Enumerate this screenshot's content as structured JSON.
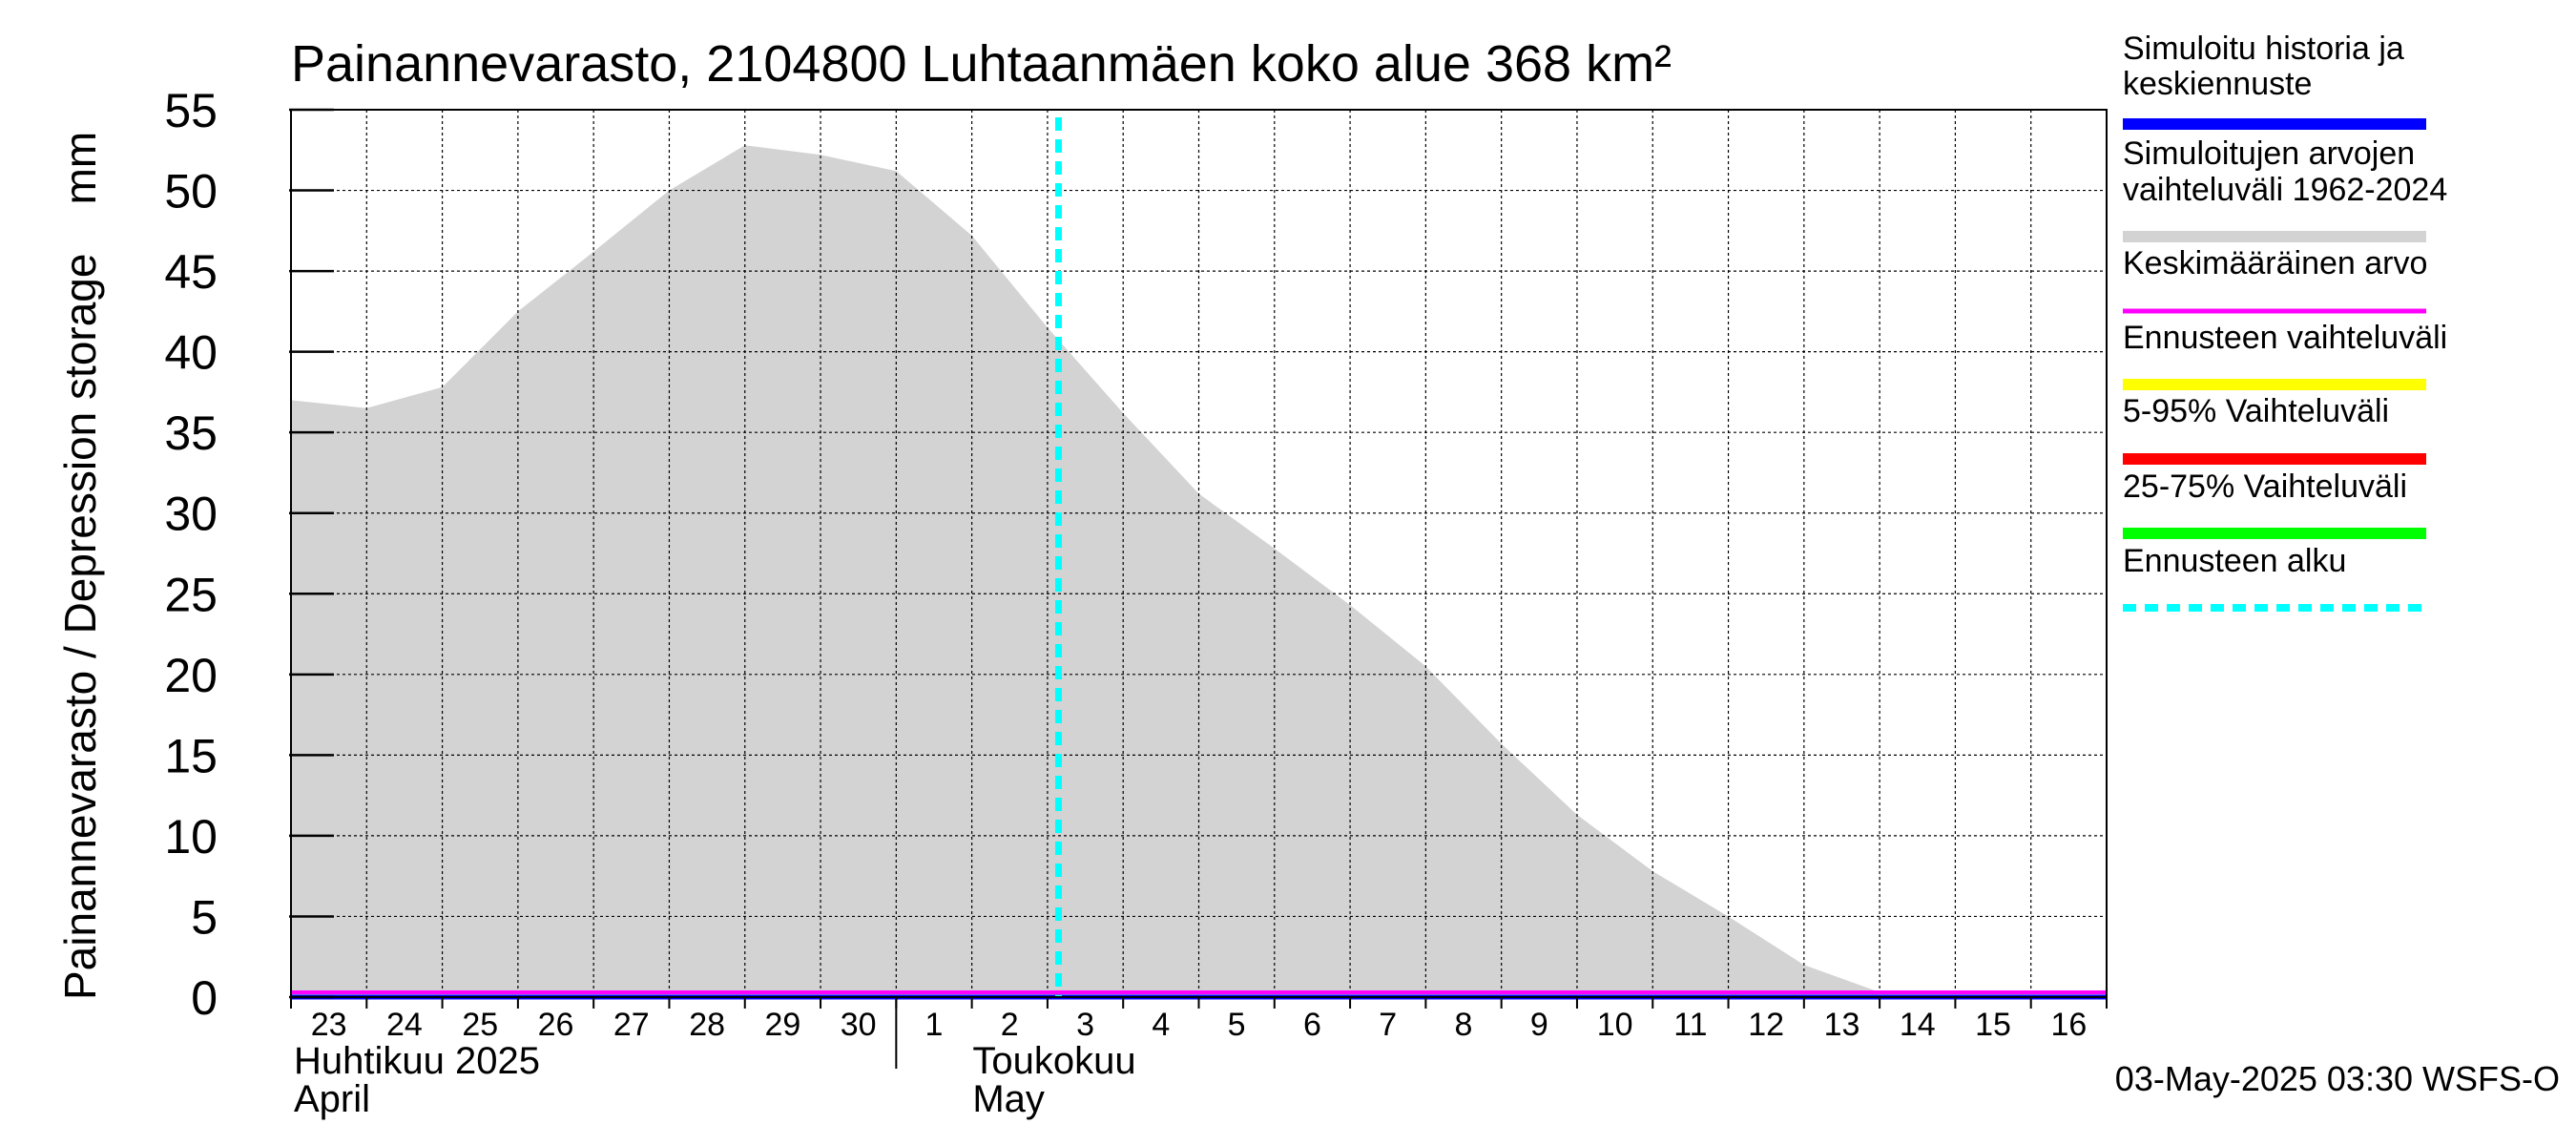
{
  "chart_data": {
    "type": "area",
    "title": "Painannevarasto, 2104800 Luhtaanmäen koko alue 368 km²",
    "ylabel": "Painannevarasto / Depression storage    mm",
    "ylim": [
      0,
      55
    ],
    "yticks": [
      0,
      5,
      10,
      15,
      20,
      25,
      30,
      35,
      40,
      45,
      50,
      55
    ],
    "x_range": [
      "2025-04-23",
      "2025-05-17"
    ],
    "x_tick_labels": [
      "23",
      "24",
      "25",
      "26",
      "27",
      "28",
      "29",
      "30",
      "1",
      "2",
      "3",
      "4",
      "5",
      "6",
      "7",
      "8",
      "9",
      "10",
      "11",
      "12",
      "13",
      "14",
      "15",
      "16"
    ],
    "month_labels": [
      {
        "fi": "Huhtikuu  2025",
        "en": "April",
        "start": "2025-04-23"
      },
      {
        "fi": "Toukokuu",
        "en": "May",
        "start": "2025-05-01"
      }
    ],
    "grid": true,
    "legend_position": "right",
    "series": [
      {
        "name": "Simuloitujen arvojen vaihteluväli 1962-2024",
        "color": "#d3d3d3",
        "kind": "range-area",
        "x": [
          "2025-04-23",
          "2025-04-24",
          "2025-04-25",
          "2025-04-26",
          "2025-04-27",
          "2025-04-28",
          "2025-04-29",
          "2025-04-30",
          "2025-05-01",
          "2025-05-02",
          "2025-05-03",
          "2025-05-04",
          "2025-05-05",
          "2025-05-06",
          "2025-05-07",
          "2025-05-08",
          "2025-05-09",
          "2025-05-10",
          "2025-05-11",
          "2025-05-12",
          "2025-05-13",
          "2025-05-14",
          "2025-05-15",
          "2025-05-16",
          "2025-05-17"
        ],
        "upper": [
          37.0,
          36.5,
          37.8,
          42.5,
          46.2,
          50.0,
          52.8,
          52.2,
          51.2,
          47.2,
          41.5,
          36.2,
          31.2,
          27.8,
          24.3,
          20.5,
          15.7,
          11.3,
          7.8,
          5.0,
          2.0,
          0.3,
          0.3,
          0.3,
          0.3
        ],
        "lower": [
          0,
          0,
          0,
          0,
          0,
          0,
          0,
          0,
          0,
          0,
          0,
          0,
          0,
          0,
          0,
          0,
          0,
          0,
          0,
          0,
          0,
          0,
          0,
          0,
          0
        ]
      },
      {
        "name": "Keskimääräinen arvo",
        "color": "#ff00ff",
        "kind": "line",
        "x": [
          "2025-04-23",
          "2025-05-17"
        ],
        "y": [
          0,
          0
        ]
      },
      {
        "name": "Simuloitu historia ja keskiennuste",
        "color": "#0000ff",
        "kind": "line",
        "x": [
          "2025-04-23",
          "2025-05-17"
        ],
        "y": [
          0,
          0
        ]
      }
    ],
    "forecast_start": "2025-05-03T03:30",
    "legend": [
      {
        "label": "Simuloitu historia ja keskiennuste",
        "color": "#0000ff",
        "style": "solid"
      },
      {
        "label": "Simuloitujen arvojen vaihteluväli 1962-2024",
        "color": "#d3d3d3",
        "style": "solid"
      },
      {
        "label": "Keskimääräinen arvo",
        "color": "#ff00ff",
        "style": "thin"
      },
      {
        "label": "Ennusteen vaihteluväli",
        "color": "#ffff00",
        "style": "solid"
      },
      {
        "label": "5-95% Vaihteluväli",
        "color": "#ff0000",
        "style": "solid"
      },
      {
        "label": "25-75% Vaihteluväli",
        "color": "#00ff00",
        "style": "solid"
      },
      {
        "label": "Ennusteen alku",
        "color": "#00ffff",
        "style": "dashed"
      }
    ],
    "footer": "03-May-2025 03:30 WSFS-O"
  }
}
